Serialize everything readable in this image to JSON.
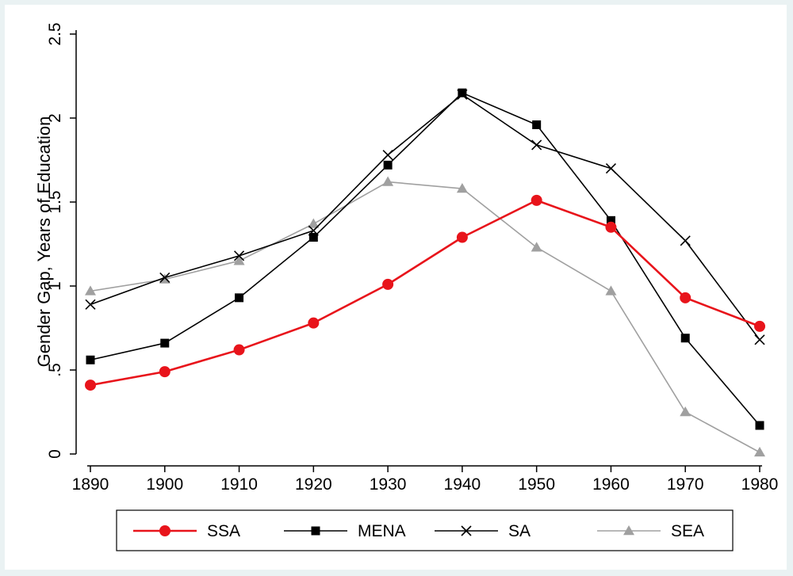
{
  "chart_data": {
    "type": "line",
    "title": "",
    "xlabel": "",
    "ylabel": "Gender Gap, Years of Education",
    "x": [
      1890,
      1900,
      1910,
      1920,
      1930,
      1940,
      1950,
      1960,
      1970,
      1980
    ],
    "x_tick_labels": [
      "1890",
      "1900",
      "1910",
      "1920",
      "1930",
      "1940",
      "1950",
      "1960",
      "1970",
      "1980"
    ],
    "y_ticks": [
      0,
      0.5,
      1,
      1.5,
      2,
      2.5
    ],
    "y_tick_labels": [
      "0",
      ".5",
      "1",
      "1.5",
      "2",
      "2.5"
    ],
    "ylim": [
      0,
      2.5
    ],
    "grid": false,
    "legend_position": "bottom",
    "series": [
      {
        "name": "SSA",
        "color": "#e8141b",
        "marker": "circle",
        "values": [
          0.41,
          0.49,
          0.62,
          0.78,
          1.01,
          1.29,
          1.51,
          1.35,
          0.93,
          0.76
        ]
      },
      {
        "name": "MENA",
        "color": "#000000",
        "marker": "square",
        "values": [
          0.56,
          0.66,
          0.93,
          1.29,
          1.72,
          2.15,
          1.96,
          1.39,
          0.69,
          0.17
        ]
      },
      {
        "name": "SA",
        "color": "#000000",
        "marker": "x",
        "values": [
          0.89,
          1.05,
          1.18,
          1.33,
          1.78,
          2.14,
          1.84,
          1.7,
          1.27,
          0.68
        ]
      },
      {
        "name": "SEA",
        "color": "#a0a0a0",
        "marker": "triangle",
        "values": [
          0.97,
          1.04,
          1.15,
          1.37,
          1.62,
          1.58,
          1.23,
          0.97,
          0.25,
          0.01
        ]
      }
    ]
  }
}
